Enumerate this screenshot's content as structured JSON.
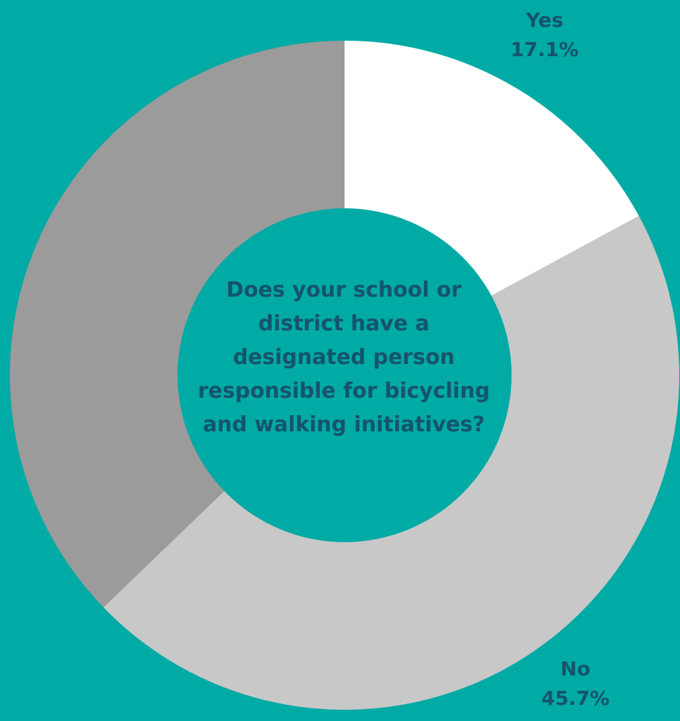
{
  "chart_data": {
    "type": "pie",
    "style": "donut",
    "title": "Does your school or district have a designated person responsible for bicycling and walking initiatives?",
    "slices": [
      {
        "name": "Yes",
        "value": 17.1,
        "value_label": "17.1%",
        "color": "#ffffff"
      },
      {
        "name": "No",
        "value": 45.7,
        "value_label": "45.7%",
        "color": "#c8c8c8"
      },
      {
        "name": "",
        "value": 37.2,
        "value_label": "",
        "color": "#9b9b9b"
      }
    ],
    "center_color": "#00aaa5"
  },
  "colors": {
    "background": "#00aaa5",
    "text": "#15546b"
  }
}
